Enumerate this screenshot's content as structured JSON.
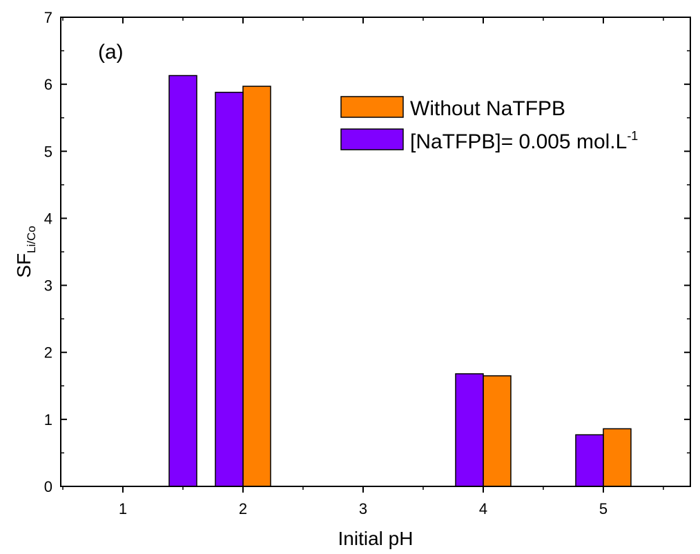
{
  "chart_data": {
    "type": "bar",
    "xlabel": "Initial pH",
    "ylabel": "SF",
    "ylabel_sub": "Li/Co",
    "xlim": [
      0.0,
      5.8
    ],
    "ylim": [
      0,
      7
    ],
    "x_ticks": [
      1,
      2,
      3,
      4,
      5
    ],
    "y_ticks": [
      0,
      1,
      2,
      3,
      4,
      5,
      6,
      7
    ],
    "annotation": "(a)",
    "grid": false,
    "legend_position": "top-right",
    "series": [
      {
        "name": "Without NaTFPB",
        "color": "#ff8000",
        "points": [
          {
            "x": 2,
            "y": 5.97
          },
          {
            "x": 4,
            "y": 1.65
          },
          {
            "x": 5,
            "y": 0.86
          }
        ]
      },
      {
        "name": "[NaTFPB]= 0.005 mol.L",
        "name_sup": "-1",
        "color": "#8000ff",
        "points": [
          {
            "x": 1.5,
            "y": 6.13
          },
          {
            "x": 2,
            "y": 5.88
          },
          {
            "x": 4,
            "y": 1.68
          },
          {
            "x": 5,
            "y": 0.77
          }
        ]
      }
    ]
  }
}
